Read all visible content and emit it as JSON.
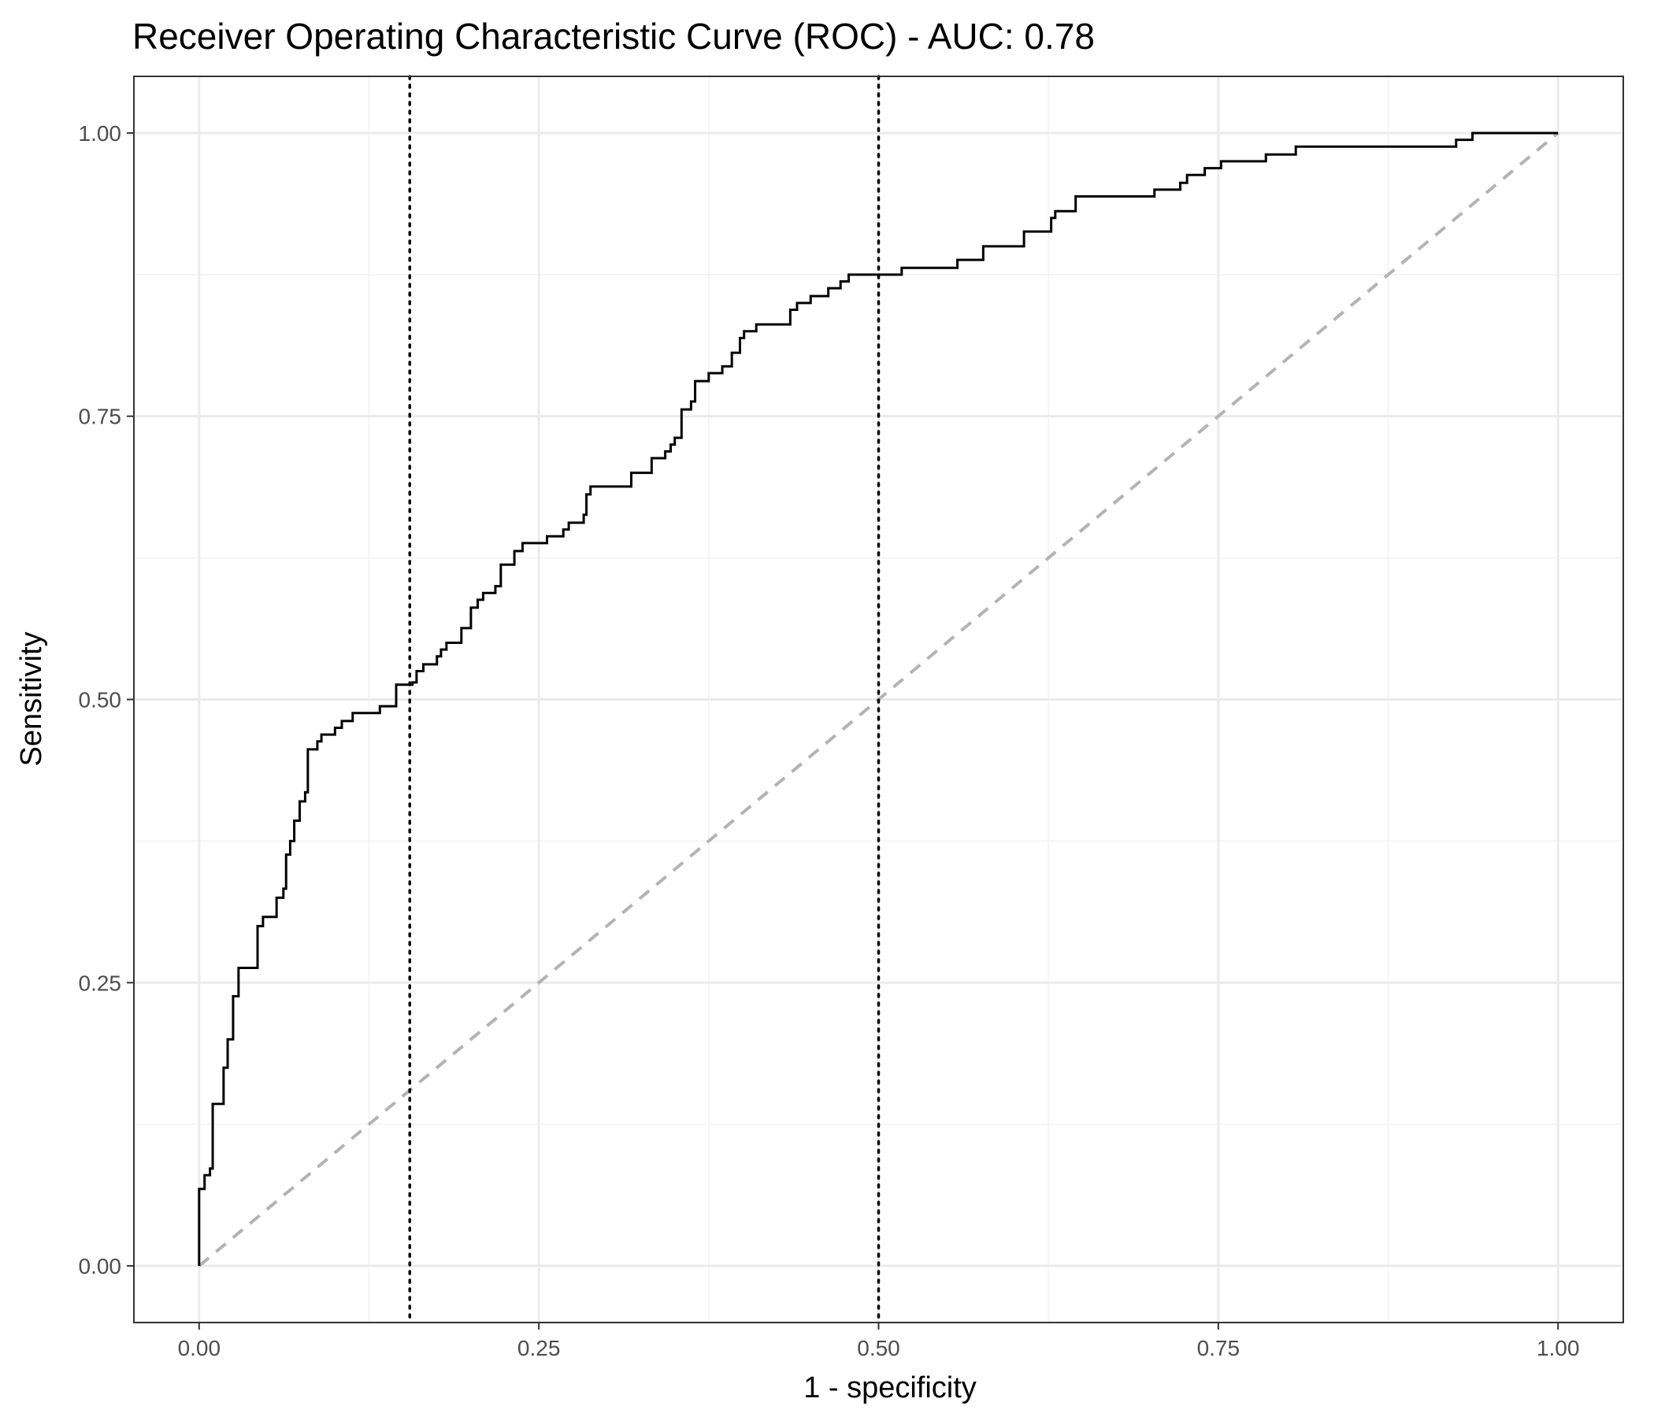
{
  "chart_data": {
    "type": "line",
    "title": "Receiver Operating Characteristic Curve (ROC) - AUC:  0.78",
    "xlabel": "1 - specificity",
    "ylabel": "Sensitivity",
    "xlim": [
      -0.048,
      1.048
    ],
    "ylim": [
      -0.05,
      1.05
    ],
    "x_ticks": [
      0.0,
      0.25,
      0.5,
      0.75,
      1.0
    ],
    "x_tick_labels": [
      "0.00",
      "0.25",
      "0.50",
      "0.75",
      "1.00"
    ],
    "y_ticks": [
      0.0,
      0.25,
      0.5,
      0.75,
      1.0
    ],
    "y_tick_labels": [
      "0.00",
      "0.25",
      "0.50",
      "0.75",
      "1.00"
    ],
    "x_minor_ticks": [
      0.125,
      0.375,
      0.625,
      0.875
    ],
    "y_minor_ticks": [
      0.125,
      0.375,
      0.625,
      0.875
    ],
    "grid": true,
    "legend": "none",
    "colors": {
      "curve": "#000000",
      "diagonal": "#b3b3b3",
      "threshold_lines": "#000000",
      "grid_major": "#ebebeb",
      "grid_minor": "#f2f2f2",
      "panel_border": "#333333"
    },
    "diagonal_reference": {
      "from": [
        0,
        0
      ],
      "to": [
        1,
        1
      ],
      "style": "dashed"
    },
    "vertical_reference_lines": [
      0.155,
      0.5
    ],
    "series": [
      {
        "style": "step",
        "points": [
          [
            0.0,
            0.0
          ],
          [
            0.0,
            0.068
          ],
          [
            0.004,
            0.068
          ],
          [
            0.004,
            0.08
          ],
          [
            0.008,
            0.08
          ],
          [
            0.008,
            0.086
          ],
          [
            0.01,
            0.086
          ],
          [
            0.01,
            0.143
          ],
          [
            0.018,
            0.143
          ],
          [
            0.018,
            0.175
          ],
          [
            0.021,
            0.175
          ],
          [
            0.021,
            0.2
          ],
          [
            0.025,
            0.2
          ],
          [
            0.025,
            0.238
          ],
          [
            0.029,
            0.238
          ],
          [
            0.029,
            0.263
          ],
          [
            0.043,
            0.263
          ],
          [
            0.043,
            0.3
          ],
          [
            0.047,
            0.3
          ],
          [
            0.047,
            0.308
          ],
          [
            0.057,
            0.308
          ],
          [
            0.057,
            0.325
          ],
          [
            0.062,
            0.325
          ],
          [
            0.062,
            0.333
          ],
          [
            0.064,
            0.333
          ],
          [
            0.064,
            0.363
          ],
          [
            0.067,
            0.363
          ],
          [
            0.067,
            0.375
          ],
          [
            0.07,
            0.375
          ],
          [
            0.07,
            0.393
          ],
          [
            0.074,
            0.393
          ],
          [
            0.074,
            0.41
          ],
          [
            0.078,
            0.41
          ],
          [
            0.078,
            0.418
          ],
          [
            0.08,
            0.418
          ],
          [
            0.08,
            0.456
          ],
          [
            0.087,
            0.456
          ],
          [
            0.087,
            0.463
          ],
          [
            0.09,
            0.463
          ],
          [
            0.09,
            0.469
          ],
          [
            0.1,
            0.469
          ],
          [
            0.1,
            0.475
          ],
          [
            0.105,
            0.475
          ],
          [
            0.105,
            0.481
          ],
          [
            0.113,
            0.481
          ],
          [
            0.113,
            0.488
          ],
          [
            0.133,
            0.488
          ],
          [
            0.133,
            0.494
          ],
          [
            0.145,
            0.494
          ],
          [
            0.145,
            0.513
          ],
          [
            0.157,
            0.513
          ],
          [
            0.157,
            0.515
          ],
          [
            0.16,
            0.515
          ],
          [
            0.16,
            0.525
          ],
          [
            0.165,
            0.525
          ],
          [
            0.165,
            0.531
          ],
          [
            0.175,
            0.531
          ],
          [
            0.175,
            0.538
          ],
          [
            0.178,
            0.538
          ],
          [
            0.178,
            0.544
          ],
          [
            0.182,
            0.544
          ],
          [
            0.182,
            0.55
          ],
          [
            0.193,
            0.55
          ],
          [
            0.193,
            0.563
          ],
          [
            0.2,
            0.563
          ],
          [
            0.2,
            0.581
          ],
          [
            0.205,
            0.581
          ],
          [
            0.205,
            0.588
          ],
          [
            0.209,
            0.588
          ],
          [
            0.209,
            0.594
          ],
          [
            0.218,
            0.594
          ],
          [
            0.218,
            0.6
          ],
          [
            0.222,
            0.6
          ],
          [
            0.222,
            0.619
          ],
          [
            0.232,
            0.619
          ],
          [
            0.232,
            0.631
          ],
          [
            0.238,
            0.631
          ],
          [
            0.238,
            0.638
          ],
          [
            0.256,
            0.638
          ],
          [
            0.256,
            0.644
          ],
          [
            0.268,
            0.644
          ],
          [
            0.268,
            0.65
          ],
          [
            0.272,
            0.65
          ],
          [
            0.272,
            0.656
          ],
          [
            0.283,
            0.656
          ],
          [
            0.283,
            0.663
          ],
          [
            0.285,
            0.663
          ],
          [
            0.285,
            0.681
          ],
          [
            0.288,
            0.681
          ],
          [
            0.288,
            0.688
          ],
          [
            0.318,
            0.688
          ],
          [
            0.318,
            0.7
          ],
          [
            0.333,
            0.7
          ],
          [
            0.333,
            0.713
          ],
          [
            0.343,
            0.713
          ],
          [
            0.343,
            0.719
          ],
          [
            0.347,
            0.719
          ],
          [
            0.347,
            0.725
          ],
          [
            0.35,
            0.725
          ],
          [
            0.35,
            0.731
          ],
          [
            0.355,
            0.731
          ],
          [
            0.355,
            0.756
          ],
          [
            0.362,
            0.756
          ],
          [
            0.362,
            0.763
          ],
          [
            0.365,
            0.763
          ],
          [
            0.365,
            0.781
          ],
          [
            0.375,
            0.781
          ],
          [
            0.375,
            0.788
          ],
          [
            0.385,
            0.788
          ],
          [
            0.385,
            0.794
          ],
          [
            0.392,
            0.794
          ],
          [
            0.392,
            0.806
          ],
          [
            0.398,
            0.806
          ],
          [
            0.398,
            0.819
          ],
          [
            0.401,
            0.819
          ],
          [
            0.401,
            0.825
          ],
          [
            0.41,
            0.825
          ],
          [
            0.41,
            0.831
          ],
          [
            0.435,
            0.831
          ],
          [
            0.435,
            0.844
          ],
          [
            0.44,
            0.844
          ],
          [
            0.44,
            0.85
          ],
          [
            0.45,
            0.85
          ],
          [
            0.45,
            0.856
          ],
          [
            0.463,
            0.856
          ],
          [
            0.463,
            0.863
          ],
          [
            0.472,
            0.863
          ],
          [
            0.472,
            0.869
          ],
          [
            0.478,
            0.869
          ],
          [
            0.478,
            0.875
          ],
          [
            0.517,
            0.875
          ],
          [
            0.517,
            0.881
          ],
          [
            0.558,
            0.881
          ],
          [
            0.558,
            0.888
          ],
          [
            0.577,
            0.888
          ],
          [
            0.577,
            0.9
          ],
          [
            0.607,
            0.9
          ],
          [
            0.607,
            0.913
          ],
          [
            0.627,
            0.913
          ],
          [
            0.627,
            0.925
          ],
          [
            0.63,
            0.925
          ],
          [
            0.63,
            0.931
          ],
          [
            0.645,
            0.931
          ],
          [
            0.645,
            0.944
          ],
          [
            0.703,
            0.944
          ],
          [
            0.703,
            0.95
          ],
          [
            0.722,
            0.95
          ],
          [
            0.722,
            0.956
          ],
          [
            0.727,
            0.956
          ],
          [
            0.727,
            0.963
          ],
          [
            0.74,
            0.963
          ],
          [
            0.74,
            0.969
          ],
          [
            0.752,
            0.969
          ],
          [
            0.752,
            0.975
          ],
          [
            0.785,
            0.975
          ],
          [
            0.785,
            0.981
          ],
          [
            0.807,
            0.981
          ],
          [
            0.807,
            0.988
          ],
          [
            0.925,
            0.988
          ],
          [
            0.925,
            0.994
          ],
          [
            0.937,
            0.994
          ],
          [
            0.937,
            1.0
          ],
          [
            1.0,
            1.0
          ]
        ]
      }
    ]
  }
}
